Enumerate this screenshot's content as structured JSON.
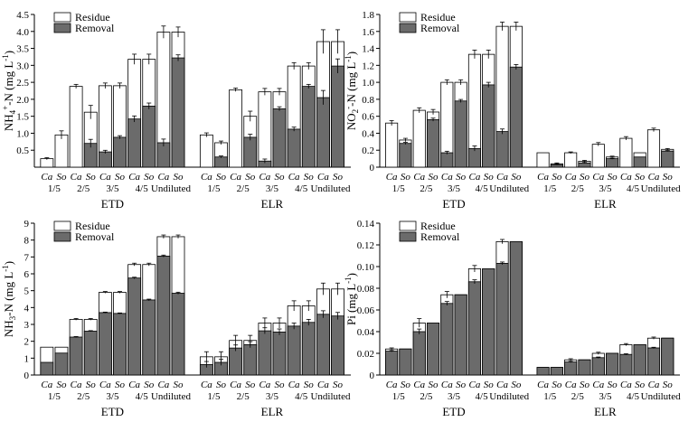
{
  "colors": {
    "residue": "#ffffff",
    "removal": "#6b6b6b",
    "axis": "#000000"
  },
  "legend": {
    "residue": "Residue",
    "removal": "Removal"
  },
  "chart_data": [
    {
      "type": "bar",
      "ylabel_main": "NH",
      "ylabel_sub": "4",
      "ylabel_sup": "+",
      "ylabel_tail": "-N (mg L",
      "ylabel_unit_sup": "-1",
      "ylabel_end": ")",
      "ylim": [
        0,
        4.5
      ],
      "yticks": [
        "0.5",
        "1.0",
        "1.5",
        "2.0",
        "2.5",
        "3.0",
        "3.5",
        "4.0",
        "4.5"
      ],
      "ytick_values": [
        0.5,
        1.0,
        1.5,
        2.0,
        2.5,
        3.0,
        3.5,
        4.0,
        4.5
      ],
      "bar_labels": [
        "Ca",
        "So"
      ],
      "dilutions": [
        "1/5",
        "2/5",
        "3/5",
        "4/5",
        "Undiluted"
      ],
      "groups": [
        "ETD",
        "ELR"
      ],
      "series": [
        {
          "name": "Residue",
          "values": [
            [
              0.25,
              0.95,
              2.38,
              1.62,
              2.4,
              2.4,
              3.18,
              3.18,
              3.98,
              3.98
            ],
            [
              0.95,
              0.72,
              2.28,
              1.5,
              2.22,
              2.22,
              2.98,
              2.98,
              3.7,
              3.7
            ]
          ]
        },
        {
          "name": "Removal",
          "values": [
            [
              0.0,
              0.0,
              0.0,
              0.7,
              0.45,
              0.88,
              1.42,
              1.8,
              0.72,
              3.22
            ],
            [
              0.0,
              0.3,
              0.0,
              0.88,
              0.18,
              1.72,
              1.12,
              2.38,
              2.05,
              2.98
            ]
          ]
        }
      ],
      "errors": [
        [
          0.03,
          0.12,
          0.06,
          0.2,
          0.08,
          0.08,
          0.15,
          0.15,
          0.18,
          0.15
        ],
        [
          0.06,
          0.05,
          0.05,
          0.15,
          0.1,
          0.1,
          0.1,
          0.1,
          0.35,
          0.35
        ]
      ]
    },
    {
      "type": "bar",
      "ylabel_main": "NO",
      "ylabel_sub": "2",
      "ylabel_sup": "-",
      "ylabel_tail": "-N (mg L",
      "ylabel_unit_sup": "-1",
      "ylabel_end": ")",
      "ylim": [
        0,
        1.8
      ],
      "yticks": [
        "0",
        "0.2",
        "0.4",
        "0.6",
        "0.8",
        "1.0",
        "1.2",
        "1.4",
        "1.6",
        "1.8"
      ],
      "ytick_values": [
        0,
        0.2,
        0.4,
        0.6,
        0.8,
        1.0,
        1.2,
        1.4,
        1.6,
        1.8
      ],
      "bar_labels": [
        "Ca",
        "So"
      ],
      "dilutions": [
        "1/5",
        "2/5",
        "3/5",
        "4/5",
        "Undiluted"
      ],
      "groups": [
        "ETD",
        "ELR"
      ],
      "series": [
        {
          "name": "Residue",
          "values": [
            [
              0.52,
              0.32,
              0.67,
              0.65,
              1.0,
              1.0,
              1.33,
              1.33,
              1.66,
              1.66
            ],
            [
              0.17,
              0.04,
              0.17,
              0.07,
              0.27,
              0.12,
              0.34,
              0.17,
              0.44,
              0.21
            ]
          ]
        },
        {
          "name": "Removal",
          "values": [
            [
              0.0,
              0.28,
              0.0,
              0.56,
              0.17,
              0.78,
              0.22,
              0.97,
              0.42,
              1.18
            ],
            [
              0.0,
              0.03,
              0.0,
              0.05,
              0.0,
              0.1,
              0.0,
              0.12,
              0.0,
              0.19
            ]
          ]
        }
      ],
      "errors": [
        [
          0.03,
          0.02,
          0.03,
          0.03,
          0.03,
          0.03,
          0.05,
          0.05,
          0.05,
          0.05
        ],
        [
          0.0,
          0.01,
          0.01,
          0.01,
          0.02,
          0.01,
          0.02,
          0.0,
          0.02,
          0.01
        ]
      ]
    },
    {
      "type": "bar",
      "ylabel_main": "NH",
      "ylabel_sub": "3",
      "ylabel_sup": "",
      "ylabel_tail": "-N (mg L",
      "ylabel_unit_sup": "-1",
      "ylabel_end": ")",
      "ylim": [
        0,
        9
      ],
      "yticks": [
        "0",
        "1",
        "2",
        "3",
        "4",
        "5",
        "6",
        "7",
        "8",
        "9"
      ],
      "ytick_values": [
        0,
        1,
        2,
        3,
        4,
        5,
        6,
        7,
        8,
        9
      ],
      "bar_labels": [
        "Ca",
        "So"
      ],
      "dilutions": [
        "1/5",
        "2/5",
        "3/5",
        "4/5",
        "Undiluted"
      ],
      "groups": [
        "ETD",
        "ELR"
      ],
      "series": [
        {
          "name": "Residue",
          "values": [
            [
              1.65,
              1.65,
              3.3,
              3.3,
              4.9,
              4.9,
              6.55,
              6.55,
              8.2,
              8.2
            ],
            [
              1.08,
              1.08,
              2.05,
              2.05,
              3.08,
              3.08,
              4.1,
              4.1,
              5.1,
              5.1
            ]
          ]
        },
        {
          "name": "Removal",
          "values": [
            [
              0.75,
              1.3,
              2.25,
              2.6,
              3.7,
              3.65,
              5.75,
              4.45,
              7.05,
              4.85
            ],
            [
              0.62,
              0.75,
              1.6,
              1.8,
              2.62,
              2.55,
              2.9,
              3.12,
              3.6,
              3.5
            ]
          ]
        }
      ],
      "errors": [
        [
          0.0,
          0.0,
          0.05,
          0.05,
          0.05,
          0.05,
          0.08,
          0.08,
          0.1,
          0.1
        ],
        [
          0.3,
          0.3,
          0.3,
          0.3,
          0.3,
          0.3,
          0.3,
          0.3,
          0.35,
          0.35
        ]
      ]
    },
    {
      "type": "bar",
      "ylabel_main": "Pi",
      "ylabel_sub": "",
      "ylabel_sup": "",
      "ylabel_tail": " (mg L",
      "ylabel_unit_sup": "-1",
      "ylabel_end": ")",
      "ylim": [
        0,
        0.14
      ],
      "yticks": [
        "0",
        "0.02",
        "0.04",
        "0.06",
        "0.08",
        "0.10",
        "0.12",
        "0.14"
      ],
      "ytick_values": [
        0,
        0.02,
        0.04,
        0.06,
        0.08,
        0.1,
        0.12,
        0.14
      ],
      "bar_labels": [
        "Ca",
        "So"
      ],
      "dilutions": [
        "1/5",
        "2/5",
        "3/5",
        "4/5",
        "Undiluted"
      ],
      "groups": [
        "ETD",
        "ELR"
      ],
      "series": [
        {
          "name": "Residue",
          "values": [
            [
              0.024,
              0.024,
              0.048,
              0.048,
              0.074,
              0.074,
              0.098,
              0.098,
              0.123,
              0.123
            ],
            [
              0.007,
              0.007,
              0.014,
              0.014,
              0.02,
              0.02,
              0.028,
              0.028,
              0.034,
              0.034
            ]
          ]
        },
        {
          "name": "Removal",
          "values": [
            [
              0.022,
              0.024,
              0.04,
              0.048,
              0.066,
              0.074,
              0.086,
              0.098,
              0.103,
              0.123
            ],
            [
              0.007,
              0.007,
              0.012,
              0.014,
              0.016,
              0.02,
              0.019,
              0.028,
              0.025,
              0.034
            ]
          ]
        }
      ],
      "errors": [
        [
          0.001,
          0.0,
          0.004,
          0.0,
          0.003,
          0.0,
          0.003,
          0.0,
          0.002,
          0.0
        ],
        [
          0.0,
          0.0,
          0.001,
          0.0,
          0.001,
          0.0,
          0.001,
          0.0,
          0.001,
          0.0
        ]
      ]
    }
  ]
}
